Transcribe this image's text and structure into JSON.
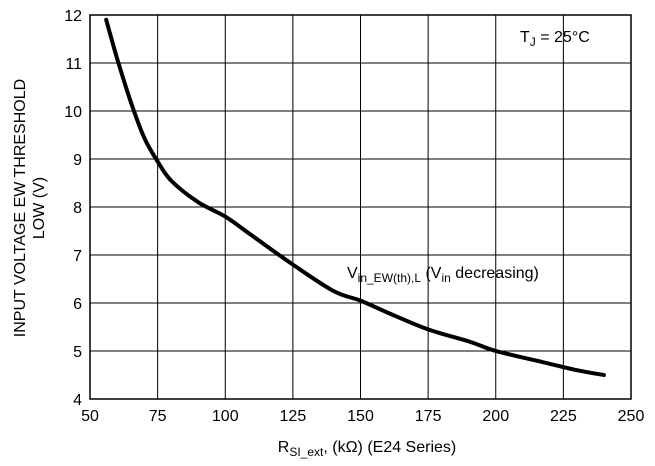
{
  "chart_data": {
    "type": "line",
    "title": "",
    "xlabel": {
      "main": "R",
      "sub": "SI_ext",
      "rest": ", (kΩ) (E24 Series)"
    },
    "ylabel": {
      "line1": "INPUT VOLTAGE EW THRESHOLD",
      "line2": "LOW (V)"
    },
    "xlim": [
      50,
      250
    ],
    "ylim": [
      4,
      12
    ],
    "xticks": [
      50,
      75,
      100,
      125,
      150,
      175,
      200,
      225,
      250
    ],
    "yticks": [
      4,
      5,
      6,
      7,
      8,
      9,
      10,
      11,
      12
    ],
    "grid": true,
    "annotations": {
      "temperature": {
        "main": "T",
        "sub": "J",
        "rest": " = 25°C"
      },
      "curve_label": {
        "p1": "V",
        "s1": "in_EW(th),L",
        "p2": " (V",
        "s2": "in",
        "p3": " decreasing)"
      }
    },
    "series": [
      {
        "x": [
          56,
          60,
          65,
          70,
          75,
          80,
          90,
          100,
          110,
          125,
          140,
          150,
          160,
          175,
          190,
          200,
          215,
          230,
          240
        ],
        "y": [
          11.9,
          11.1,
          10.2,
          9.45,
          8.95,
          8.55,
          8.1,
          7.8,
          7.4,
          6.8,
          6.25,
          6.05,
          5.8,
          5.45,
          5.2,
          5.0,
          4.8,
          4.6,
          4.5
        ]
      }
    ]
  }
}
